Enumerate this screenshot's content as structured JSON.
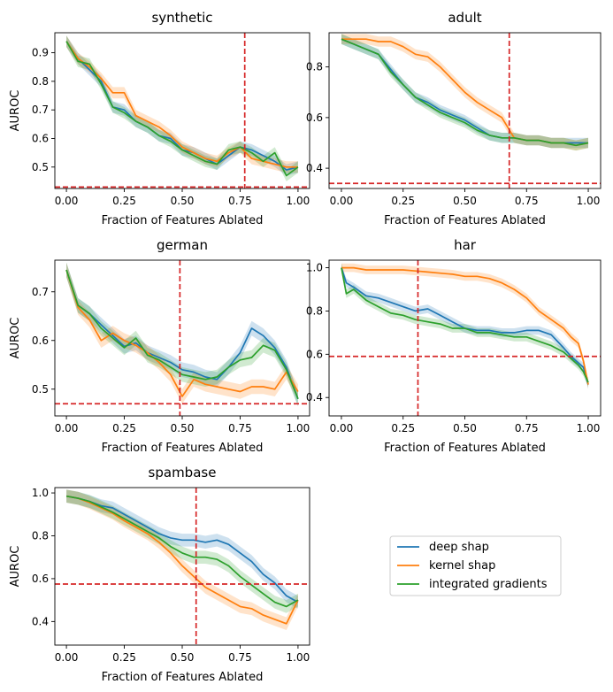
{
  "legend": {
    "placement": "bottom-right empty cell",
    "entries": [
      "deep shap",
      "kernel shap",
      "integrated gradients"
    ]
  },
  "colors": {
    "deep_shap": "#1f77b4",
    "kernel_shap": "#ff7f0e",
    "integrated_gradients": "#2ca02c",
    "threshold": "#d62728"
  },
  "chart_data": [
    {
      "type": "line",
      "title": "synthetic",
      "xlabel": "Fraction of Features Ablated",
      "ylabel": "AUROC",
      "xlim": [
        -0.05,
        1.05
      ],
      "ylim": [
        0.425,
        0.97
      ],
      "xticks": [
        0.0,
        0.25,
        0.5,
        0.75,
        1.0
      ],
      "xtick_labels": [
        "0.00",
        "0.25",
        "0.50",
        "0.75",
        "1.00"
      ],
      "yticks": [
        0.5,
        0.6,
        0.7,
        0.8,
        0.9
      ],
      "ytick_labels": [
        "0.5",
        "0.6",
        "0.7",
        "0.8",
        "0.9"
      ],
      "threshold_x": 0.77,
      "threshold_y": 0.43,
      "band": 0.02,
      "x": [
        0.0,
        0.05,
        0.1,
        0.15,
        0.2,
        0.25,
        0.3,
        0.35,
        0.4,
        0.45,
        0.5,
        0.55,
        0.6,
        0.65,
        0.7,
        0.75,
        0.8,
        0.85,
        0.9,
        0.95,
        1.0
      ],
      "series": [
        {
          "name": "deep shap",
          "values": [
            0.94,
            0.88,
            0.84,
            0.8,
            0.71,
            0.7,
            0.66,
            0.64,
            0.61,
            0.6,
            0.56,
            0.55,
            0.53,
            0.51,
            0.54,
            0.57,
            0.56,
            0.54,
            0.52,
            0.49,
            0.5
          ]
        },
        {
          "name": "kernel shap",
          "values": [
            0.94,
            0.88,
            0.85,
            0.81,
            0.76,
            0.76,
            0.68,
            0.66,
            0.64,
            0.61,
            0.57,
            0.55,
            0.53,
            0.52,
            0.55,
            0.57,
            0.53,
            0.52,
            0.51,
            0.5,
            0.5
          ]
        },
        {
          "name": "integrated gradients",
          "values": [
            0.94,
            0.87,
            0.86,
            0.79,
            0.71,
            0.69,
            0.66,
            0.64,
            0.61,
            0.59,
            0.56,
            0.54,
            0.52,
            0.51,
            0.56,
            0.57,
            0.55,
            0.52,
            0.55,
            0.47,
            0.5
          ]
        }
      ]
    },
    {
      "type": "line",
      "title": "adult",
      "xlabel": "Fraction of Features Ablated",
      "ylabel": "",
      "xlim": [
        -0.05,
        1.05
      ],
      "ylim": [
        0.32,
        0.935
      ],
      "xticks": [
        0.0,
        0.25,
        0.5,
        0.75,
        1.0
      ],
      "xtick_labels": [
        "0.00",
        "0.25",
        "0.50",
        "0.75",
        "1.00"
      ],
      "yticks": [
        0.4,
        0.6,
        0.8
      ],
      "ytick_labels": [
        "0.4",
        "0.6",
        "0.8"
      ],
      "threshold_x": 0.68,
      "threshold_y": 0.34,
      "band": 0.02,
      "x": [
        0.0,
        0.05,
        0.1,
        0.15,
        0.2,
        0.25,
        0.3,
        0.35,
        0.4,
        0.45,
        0.5,
        0.55,
        0.6,
        0.65,
        0.7,
        0.75,
        0.8,
        0.85,
        0.9,
        0.95,
        1.0
      ],
      "series": [
        {
          "name": "deep shap",
          "values": [
            0.91,
            0.89,
            0.87,
            0.85,
            0.79,
            0.73,
            0.68,
            0.66,
            0.63,
            0.61,
            0.59,
            0.56,
            0.53,
            0.52,
            0.52,
            0.51,
            0.51,
            0.5,
            0.5,
            0.5,
            0.5
          ]
        },
        {
          "name": "kernel shap",
          "values": [
            0.91,
            0.91,
            0.91,
            0.9,
            0.9,
            0.88,
            0.85,
            0.84,
            0.8,
            0.75,
            0.7,
            0.66,
            0.63,
            0.6,
            0.52,
            0.51,
            0.51,
            0.5,
            0.5,
            0.49,
            0.5
          ]
        },
        {
          "name": "integrated gradients",
          "values": [
            0.91,
            0.89,
            0.87,
            0.85,
            0.78,
            0.73,
            0.68,
            0.65,
            0.62,
            0.6,
            0.58,
            0.55,
            0.53,
            0.52,
            0.52,
            0.51,
            0.51,
            0.5,
            0.5,
            0.49,
            0.5
          ]
        }
      ]
    },
    {
      "type": "line",
      "title": "german",
      "xlabel": "Fraction of Features Ablated",
      "ylabel": "AUROC",
      "xlim": [
        -0.05,
        1.05
      ],
      "ylim": [
        0.445,
        0.765
      ],
      "xticks": [
        0.0,
        0.25,
        0.5,
        0.75,
        1.0
      ],
      "xtick_labels": [
        "0.00",
        "0.25",
        "0.50",
        "0.75",
        "1.00"
      ],
      "yticks": [
        0.5,
        0.6,
        0.7
      ],
      "ytick_labels": [
        "0.5",
        "0.6",
        "0.7"
      ],
      "threshold_x": 0.49,
      "threshold_y": 0.47,
      "band": 0.015,
      "x": [
        0.0,
        0.05,
        0.1,
        0.15,
        0.2,
        0.25,
        0.3,
        0.35,
        0.4,
        0.45,
        0.5,
        0.55,
        0.6,
        0.65,
        0.7,
        0.75,
        0.8,
        0.85,
        0.9,
        0.95,
        1.0
      ],
      "series": [
        {
          "name": "deep shap",
          "values": [
            0.745,
            0.672,
            0.655,
            0.632,
            0.61,
            0.588,
            0.595,
            0.575,
            0.565,
            0.555,
            0.54,
            0.535,
            0.525,
            0.52,
            0.545,
            0.575,
            0.625,
            0.61,
            0.585,
            0.545,
            0.48
          ]
        },
        {
          "name": "kernel shap",
          "values": [
            0.745,
            0.668,
            0.642,
            0.6,
            0.615,
            0.6,
            0.59,
            0.575,
            0.555,
            0.53,
            0.485,
            0.52,
            0.51,
            0.505,
            0.5,
            0.495,
            0.505,
            0.505,
            0.5,
            0.535,
            0.495
          ]
        },
        {
          "name": "integrated gradients",
          "values": [
            0.745,
            0.672,
            0.655,
            0.625,
            0.605,
            0.585,
            0.605,
            0.57,
            0.56,
            0.545,
            0.53,
            0.525,
            0.52,
            0.525,
            0.545,
            0.56,
            0.565,
            0.59,
            0.58,
            0.54,
            0.48
          ]
        }
      ]
    },
    {
      "type": "line",
      "title": "har",
      "xlabel": "Fraction of Features Ablated",
      "ylabel": "",
      "xlim": [
        -0.05,
        1.05
      ],
      "ylim": [
        0.315,
        1.035
      ],
      "xticks": [
        0.0,
        0.25,
        0.5,
        0.75,
        1.0
      ],
      "xtick_labels": [
        "0.00",
        "0.25",
        "0.50",
        "0.75",
        "1.00"
      ],
      "yticks": [
        0.4,
        0.6,
        0.8,
        1.0
      ],
      "ytick_labels": [
        "0.4",
        "0.6",
        "0.8",
        "1.0"
      ],
      "threshold_x": 0.31,
      "threshold_y": 0.59,
      "band": 0.02,
      "x": [
        0.0,
        0.02,
        0.05,
        0.1,
        0.15,
        0.2,
        0.25,
        0.3,
        0.35,
        0.4,
        0.45,
        0.5,
        0.55,
        0.6,
        0.65,
        0.7,
        0.75,
        0.8,
        0.85,
        0.9,
        0.93,
        0.96,
        0.98,
        1.0
      ],
      "series": [
        {
          "name": "deep shap",
          "values": [
            1.0,
            0.93,
            0.91,
            0.87,
            0.86,
            0.84,
            0.82,
            0.8,
            0.81,
            0.78,
            0.75,
            0.72,
            0.71,
            0.71,
            0.7,
            0.7,
            0.71,
            0.71,
            0.69,
            0.63,
            0.59,
            0.56,
            0.54,
            0.46
          ]
        },
        {
          "name": "kernel shap",
          "values": [
            1.0,
            1.0,
            1.0,
            0.99,
            0.99,
            0.99,
            0.99,
            0.985,
            0.98,
            0.975,
            0.97,
            0.96,
            0.96,
            0.95,
            0.93,
            0.9,
            0.86,
            0.8,
            0.76,
            0.72,
            0.68,
            0.65,
            0.57,
            0.46
          ]
        },
        {
          "name": "integrated gradients",
          "values": [
            1.0,
            0.88,
            0.9,
            0.85,
            0.82,
            0.79,
            0.78,
            0.76,
            0.75,
            0.74,
            0.72,
            0.72,
            0.7,
            0.7,
            0.69,
            0.68,
            0.68,
            0.66,
            0.64,
            0.61,
            0.58,
            0.55,
            0.52,
            0.47
          ]
        }
      ]
    },
    {
      "type": "line",
      "title": "spambase",
      "xlabel": "Fraction of Features Ablated",
      "ylabel": "AUROC",
      "xlim": [
        -0.05,
        1.05
      ],
      "ylim": [
        0.29,
        1.025
      ],
      "xticks": [
        0.0,
        0.25,
        0.5,
        0.75,
        1.0
      ],
      "xtick_labels": [
        "0.00",
        "0.25",
        "0.50",
        "0.75",
        "1.00"
      ],
      "yticks": [
        0.4,
        0.6,
        0.8,
        1.0
      ],
      "ytick_labels": [
        "0.4",
        "0.6",
        "0.8",
        "1.0"
      ],
      "threshold_x": 0.56,
      "threshold_y": 0.575,
      "band": 0.03,
      "x": [
        0.0,
        0.05,
        0.1,
        0.15,
        0.2,
        0.25,
        0.3,
        0.35,
        0.4,
        0.45,
        0.5,
        0.55,
        0.6,
        0.65,
        0.7,
        0.75,
        0.8,
        0.85,
        0.9,
        0.95,
        1.0
      ],
      "series": [
        {
          "name": "deep shap",
          "values": [
            0.985,
            0.975,
            0.96,
            0.94,
            0.93,
            0.9,
            0.87,
            0.84,
            0.81,
            0.79,
            0.78,
            0.78,
            0.77,
            0.78,
            0.76,
            0.72,
            0.68,
            0.62,
            0.58,
            0.52,
            0.49
          ]
        },
        {
          "name": "kernel shap",
          "values": [
            0.985,
            0.975,
            0.955,
            0.93,
            0.905,
            0.87,
            0.84,
            0.81,
            0.77,
            0.72,
            0.66,
            0.61,
            0.56,
            0.53,
            0.5,
            0.47,
            0.46,
            0.43,
            0.41,
            0.39,
            0.5
          ]
        },
        {
          "name": "integrated gradients",
          "values": [
            0.985,
            0.975,
            0.96,
            0.935,
            0.91,
            0.88,
            0.85,
            0.82,
            0.79,
            0.75,
            0.72,
            0.7,
            0.7,
            0.69,
            0.66,
            0.61,
            0.57,
            0.53,
            0.49,
            0.47,
            0.5
          ]
        }
      ]
    }
  ]
}
